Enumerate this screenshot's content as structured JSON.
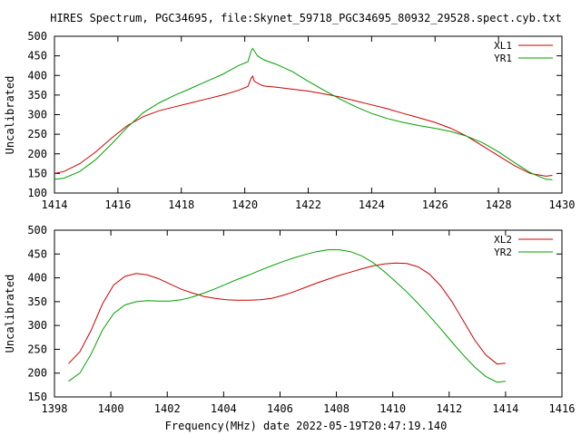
{
  "chart_data": [
    {
      "type": "line",
      "title": "HIRES Spectrum, PGC34695, file:Skynet_59718_PGC34695_80932_29528.spect.cyb.txt",
      "xlabel": "",
      "ylabel": "Uncalibrated",
      "xlim": [
        1414,
        1430
      ],
      "ylim": [
        100,
        500
      ],
      "xticks": [
        "1414",
        "1416",
        "1418",
        "1420",
        "1422",
        "1424",
        "1426",
        "1428",
        "1430"
      ],
      "yticks": [
        "100",
        "150",
        "200",
        "250",
        "300",
        "350",
        "400",
        "450",
        "500"
      ],
      "grid": false,
      "legend": "top-right",
      "series": [
        {
          "name": "XL1",
          "color": "#cc0000",
          "points": [
            [
              1414.0,
              150
            ],
            [
              1414.3,
              155
            ],
            [
              1414.8,
              175
            ],
            [
              1415.3,
              205
            ],
            [
              1415.8,
              240
            ],
            [
              1416.3,
              272
            ],
            [
              1416.8,
              295
            ],
            [
              1417.3,
              310
            ],
            [
              1417.8,
              320
            ],
            [
              1418.3,
              330
            ],
            [
              1418.8,
              340
            ],
            [
              1419.3,
              350
            ],
            [
              1419.8,
              362
            ],
            [
              1420.1,
              372
            ],
            [
              1420.2,
              393
            ],
            [
              1420.25,
              398
            ],
            [
              1420.3,
              385
            ],
            [
              1420.5,
              376
            ],
            [
              1420.6,
              373
            ],
            [
              1421.0,
              370
            ],
            [
              1421.5,
              365
            ],
            [
              1422.0,
              360
            ],
            [
              1422.5,
              353
            ],
            [
              1423.0,
              345
            ],
            [
              1423.5,
              335
            ],
            [
              1424.0,
              325
            ],
            [
              1424.5,
              315
            ],
            [
              1425.0,
              303
            ],
            [
              1425.5,
              292
            ],
            [
              1426.0,
              280
            ],
            [
              1426.5,
              265
            ],
            [
              1427.0,
              245
            ],
            [
              1427.5,
              220
            ],
            [
              1428.0,
              195
            ],
            [
              1428.5,
              170
            ],
            [
              1429.0,
              150
            ],
            [
              1429.5,
              143
            ],
            [
              1429.7,
              145
            ]
          ]
        },
        {
          "name": "YR1",
          "color": "#00a000",
          "points": [
            [
              1414.0,
              135
            ],
            [
              1414.3,
              138
            ],
            [
              1414.8,
              155
            ],
            [
              1415.3,
              185
            ],
            [
              1415.8,
              225
            ],
            [
              1416.3,
              268
            ],
            [
              1416.8,
              305
            ],
            [
              1417.3,
              330
            ],
            [
              1417.8,
              350
            ],
            [
              1418.3,
              367
            ],
            [
              1418.8,
              385
            ],
            [
              1419.3,
              403
            ],
            [
              1419.8,
              425
            ],
            [
              1420.1,
              435
            ],
            [
              1420.2,
              462
            ],
            [
              1420.25,
              469
            ],
            [
              1420.4,
              450
            ],
            [
              1420.6,
              440
            ],
            [
              1421.0,
              428
            ],
            [
              1421.5,
              410
            ],
            [
              1422.0,
              385
            ],
            [
              1422.5,
              362
            ],
            [
              1423.0,
              340
            ],
            [
              1423.5,
              320
            ],
            [
              1424.0,
              303
            ],
            [
              1424.5,
              290
            ],
            [
              1425.0,
              280
            ],
            [
              1425.5,
              272
            ],
            [
              1426.0,
              265
            ],
            [
              1426.5,
              257
            ],
            [
              1427.0,
              245
            ],
            [
              1427.5,
              228
            ],
            [
              1428.0,
              205
            ],
            [
              1428.5,
              178
            ],
            [
              1429.0,
              152
            ],
            [
              1429.5,
              135
            ],
            [
              1429.7,
              134
            ]
          ]
        }
      ]
    },
    {
      "type": "line",
      "title": "",
      "xlabel": "Frequency(MHz) date 2022-05-19T20:47:19.140",
      "ylabel": "Uncalibrated",
      "xlim": [
        1398,
        1416
      ],
      "ylim": [
        150,
        500
      ],
      "xticks": [
        "1398",
        "1400",
        "1402",
        "1404",
        "1406",
        "1408",
        "1410",
        "1412",
        "1414",
        "1416"
      ],
      "yticks": [
        "150",
        "200",
        "250",
        "300",
        "350",
        "400",
        "450",
        "500"
      ],
      "grid": false,
      "legend": "top-right",
      "series": [
        {
          "name": "XL2",
          "color": "#cc0000",
          "points": [
            [
              1398.5,
              220
            ],
            [
              1398.9,
              245
            ],
            [
              1399.3,
              290
            ],
            [
              1399.7,
              345
            ],
            [
              1400.1,
              385
            ],
            [
              1400.5,
              403
            ],
            [
              1400.9,
              409
            ],
            [
              1401.3,
              406
            ],
            [
              1401.7,
              398
            ],
            [
              1402.1,
              387
            ],
            [
              1402.5,
              376
            ],
            [
              1402.9,
              368
            ],
            [
              1403.3,
              361
            ],
            [
              1403.7,
              357
            ],
            [
              1404.1,
              354
            ],
            [
              1404.5,
              353
            ],
            [
              1404.9,
              353
            ],
            [
              1405.3,
              354
            ],
            [
              1405.7,
              357
            ],
            [
              1406.1,
              363
            ],
            [
              1406.5,
              371
            ],
            [
              1406.9,
              380
            ],
            [
              1407.3,
              389
            ],
            [
              1407.7,
              397
            ],
            [
              1408.1,
              405
            ],
            [
              1408.5,
              412
            ],
            [
              1408.9,
              419
            ],
            [
              1409.3,
              425
            ],
            [
              1409.7,
              429
            ],
            [
              1410.1,
              431
            ],
            [
              1410.5,
              430
            ],
            [
              1410.9,
              423
            ],
            [
              1411.3,
              408
            ],
            [
              1411.7,
              383
            ],
            [
              1412.1,
              350
            ],
            [
              1412.5,
              310
            ],
            [
              1412.9,
              270
            ],
            [
              1413.3,
              238
            ],
            [
              1413.7,
              219
            ],
            [
              1414.0,
              221
            ]
          ]
        },
        {
          "name": "YR2",
          "color": "#00a000",
          "points": [
            [
              1398.5,
              183
            ],
            [
              1398.9,
              200
            ],
            [
              1399.3,
              240
            ],
            [
              1399.7,
              290
            ],
            [
              1400.1,
              325
            ],
            [
              1400.5,
              343
            ],
            [
              1400.9,
              350
            ],
            [
              1401.3,
              352
            ],
            [
              1401.7,
              351
            ],
            [
              1402.1,
              351
            ],
            [
              1402.5,
              354
            ],
            [
              1402.9,
              360
            ],
            [
              1403.3,
              368
            ],
            [
              1403.7,
              377
            ],
            [
              1404.1,
              387
            ],
            [
              1404.5,
              397
            ],
            [
              1404.9,
              406
            ],
            [
              1405.3,
              416
            ],
            [
              1405.7,
              425
            ],
            [
              1406.1,
              434
            ],
            [
              1406.5,
              442
            ],
            [
              1406.9,
              449
            ],
            [
              1407.3,
              455
            ],
            [
              1407.7,
              459
            ],
            [
              1408.1,
              459
            ],
            [
              1408.5,
              455
            ],
            [
              1408.9,
              446
            ],
            [
              1409.3,
              432
            ],
            [
              1409.7,
              413
            ],
            [
              1410.1,
              392
            ],
            [
              1410.5,
              370
            ],
            [
              1410.9,
              346
            ],
            [
              1411.3,
              320
            ],
            [
              1411.7,
              293
            ],
            [
              1412.1,
              265
            ],
            [
              1412.5,
              238
            ],
            [
              1412.9,
              213
            ],
            [
              1413.3,
              193
            ],
            [
              1413.7,
              181
            ],
            [
              1414.0,
              183
            ]
          ]
        }
      ]
    }
  ]
}
